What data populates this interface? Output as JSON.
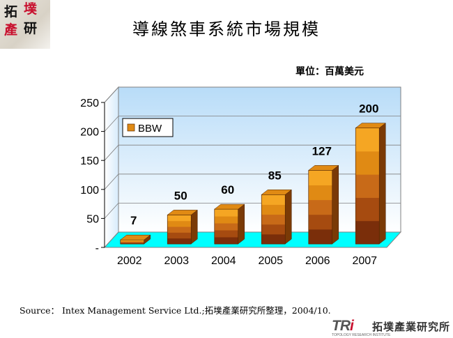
{
  "logo": {
    "chars": [
      "拓",
      "墣",
      "產",
      "研"
    ]
  },
  "page": {
    "title": "導線煞車系統市場規模",
    "unit": "單位：百萬美元",
    "source": "Source： Intex Management Service Ltd.;拓墣產業研究所整理，2004/10."
  },
  "footer": {
    "brand_tr": "TR",
    "brand_i": "i",
    "brand_sub": "TOPOLOGY RESEARCH INSTITUTE",
    "brand_name": "拓墣產業研究所"
  },
  "colors": {
    "wall": "#cce5ff",
    "floor": "#00ffff",
    "bar_top": "#e08a14",
    "bar_side": "#7a3a06",
    "bar_front": [
      "#7a2e0a",
      "#a64b10",
      "#c86a18",
      "#e08a14",
      "#f5a623"
    ],
    "brand_red": "#c8102e"
  },
  "chart_data": {
    "type": "bar",
    "categories": [
      "2002",
      "2003",
      "2004",
      "2005",
      "2006",
      "2007"
    ],
    "series": [
      {
        "name": "BBW",
        "values": [
          7,
          50,
          60,
          85,
          127,
          200
        ]
      }
    ],
    "data_labels": [
      "7",
      "50",
      "60",
      "85",
      "127",
      "200"
    ],
    "ylim": [
      0,
      250
    ],
    "y_ticks": [
      0,
      50,
      100,
      150,
      200,
      250
    ],
    "y_tick_labels": [
      "-",
      "50",
      "100",
      "150",
      "200",
      "250"
    ],
    "legend_position": "top-left",
    "grid": true
  }
}
